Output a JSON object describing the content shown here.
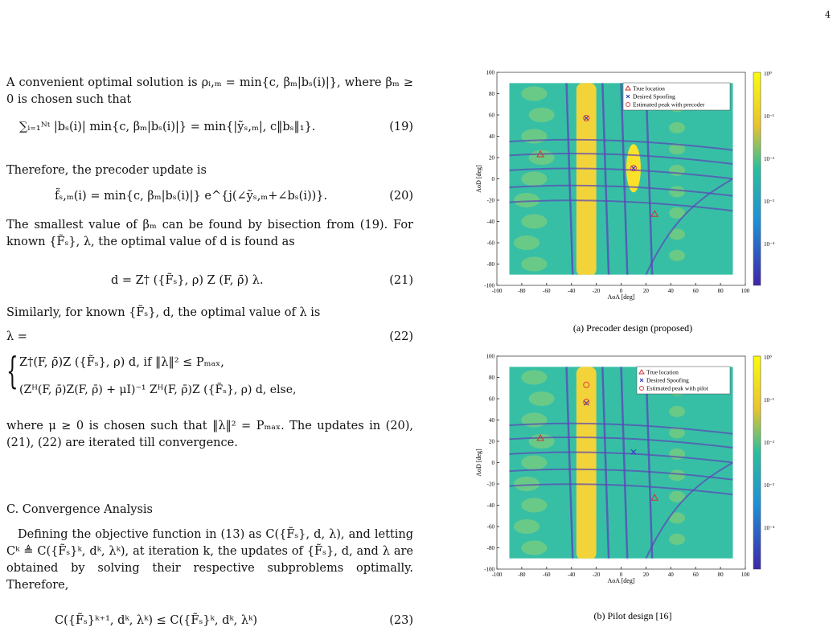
{
  "page_number": "4",
  "left_column": {
    "p1": "A convenient optimal solution is ρᵢ,ₘ = min{c, βₘ|bₛ(i)|}, where βₘ ≥ 0 is chosen such that",
    "eq19": {
      "body": "∑ᵢ₌₁ᴺᵗ |bₛ(i)| min{c, βₘ|bₛ(i)|} = min{|ỹₛ,ₘ|,  c‖bₛ‖₁}.",
      "number": "(19)"
    },
    "p2": "Therefore, the precoder update is",
    "eq20": {
      "body": "f̃ₛ,ₘ(i) = min{c, βₘ|bₛ(i)|} e^{j(∠ỹₛ,ₘ+∠bₛ(i))}.",
      "number": "(20)"
    },
    "p3": "The smallest value of βₘ can be found by bisection from (19). For known {F̃ₛ}, λ, the optimal value of d is found as",
    "eq21": {
      "body": "d = Z† ({F̃ₛ}, ρ) Z (F, ρ̄) λ.",
      "number": "(21)"
    },
    "p4": "Similarly, for known {F̃ₛ}, d, the optimal value of λ is",
    "eq22": {
      "lhs": "λ =",
      "number": "(22)",
      "case1": "Z†(F, ρ̄)Z ({F̃ₛ}, ρ) d,    if ‖λ‖² ≤ Pₘₐₓ,",
      "case2": "(Zᴴ(F, ρ̄)Z(F, ρ̄) + μI)⁻¹ Zᴴ(F, ρ̄)Z ({F̃ₛ}, ρ) d,   else,"
    },
    "p5": "where μ ≥ 0 is chosen such that ‖λ‖² = Pₘₐₓ. The updates in (20), (21), (22) are iterated till convergence.",
    "heading": "C. Convergence Analysis",
    "p6": "Defining the objective function in (13) as C({F̃ₛ}, d, λ), and letting Cᵏ ≜ C({F̃ₛ}ᵏ, dᵏ, λᵏ), at iteration k, the updates of {F̃ₛ}, d, and λ are obtained by solving their respective subproblems optimally. Therefore,",
    "eq23": {
      "body": "C({F̃ₛ}ᵏ⁺¹, dᵏ, λᵏ) ≤ C({F̃ₛ}ᵏ, dᵏ, λᵏ)",
      "number": "(23)"
    }
  },
  "figures": [
    {
      "caption": "(a) Precoder design (proposed)",
      "xlabel": "AoA [deg]",
      "ylabel": "AoD [deg]",
      "xticks": [
        -100,
        -80,
        -60,
        -40,
        -20,
        0,
        20,
        40,
        60,
        80,
        100
      ],
      "yticks": [
        100,
        80,
        60,
        40,
        20,
        0,
        -20,
        -40,
        -60,
        -80,
        -100
      ],
      "colorbar_ticks": [
        "10⁰",
        "10⁻¹",
        "10⁻²",
        "10⁻³",
        "10⁻⁴"
      ],
      "legend": [
        "True location",
        "Desired Spoofing",
        "Estimated peak with precoder"
      ]
    },
    {
      "caption": "(b) Pilot design [16]",
      "xlabel": "AoA [deg]",
      "ylabel": "AoD [deg]",
      "xticks": [
        -100,
        -80,
        -60,
        -40,
        -20,
        0,
        20,
        40,
        60,
        80,
        100
      ],
      "yticks": [
        100,
        80,
        60,
        40,
        20,
        0,
        -20,
        -40,
        -60,
        -80,
        -100
      ],
      "colorbar_ticks": [
        "10⁰",
        "10⁻¹",
        "10⁻²",
        "10⁻³",
        "10⁻⁴"
      ],
      "legend": [
        "True location",
        "Desired Spoofing",
        "Estimated peak with pilot"
      ]
    }
  ]
}
